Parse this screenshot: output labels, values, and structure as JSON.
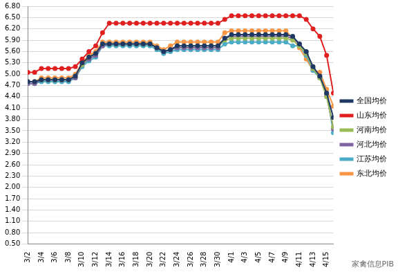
{
  "chart_data": {
    "type": "line",
    "annotation": "家禽信息PIB",
    "categories": [
      "3/2",
      null,
      "3/4",
      null,
      "3/6",
      null,
      "3/8",
      null,
      "3/10",
      null,
      "3/12",
      null,
      "3/14",
      null,
      "3/16",
      null,
      "3/18",
      null,
      "3/20",
      null,
      "3/22",
      null,
      "3/24",
      null,
      "3/26",
      null,
      "3/28",
      null,
      "3/30",
      null,
      "4/1",
      null,
      "4/3",
      null,
      "4/5",
      null,
      "4/7",
      null,
      "4/9",
      null,
      "4/11",
      null,
      "4/13",
      null,
      "4/15",
      null
    ],
    "series": [
      {
        "name": "全国均价",
        "color": "#1f3864",
        "marker": "circle",
        "line_style": "solid",
        "values": [
          4.8,
          4.8,
          4.85,
          4.85,
          4.85,
          4.85,
          4.85,
          4.95,
          5.3,
          5.45,
          5.55,
          5.8,
          5.8,
          5.8,
          5.8,
          5.8,
          5.8,
          5.8,
          5.8,
          5.7,
          5.6,
          5.65,
          5.75,
          5.75,
          5.75,
          5.75,
          5.75,
          5.75,
          5.75,
          5.95,
          6.05,
          6.05,
          6.05,
          6.05,
          6.05,
          6.05,
          6.05,
          6.05,
          6.05,
          6.0,
          5.8,
          5.6,
          5.2,
          4.95,
          4.5,
          3.85
        ]
      },
      {
        "name": "山东均价",
        "color": "#e02020",
        "marker": "circle",
        "line_style": "solid",
        "values": [
          5.05,
          5.05,
          5.15,
          5.15,
          5.15,
          5.15,
          5.15,
          5.2,
          5.4,
          5.6,
          5.75,
          6.1,
          6.35,
          6.35,
          6.35,
          6.35,
          6.35,
          6.35,
          6.35,
          6.35,
          6.35,
          6.35,
          6.35,
          6.35,
          6.35,
          6.35,
          6.35,
          6.35,
          6.35,
          6.45,
          6.55,
          6.55,
          6.55,
          6.55,
          6.55,
          6.55,
          6.55,
          6.55,
          6.55,
          6.55,
          6.55,
          6.45,
          6.2,
          6.0,
          5.5,
          4.5
        ]
      },
      {
        "name": "河南均价",
        "color": "#9bbb59",
        "marker": "circle",
        "line_style": "solid",
        "values": [
          4.8,
          4.8,
          4.85,
          4.85,
          4.85,
          4.85,
          4.85,
          4.95,
          5.25,
          5.45,
          5.55,
          5.8,
          5.8,
          5.8,
          5.8,
          5.8,
          5.8,
          5.8,
          5.8,
          5.7,
          5.6,
          5.65,
          5.75,
          5.75,
          5.75,
          5.75,
          5.75,
          5.75,
          5.75,
          5.9,
          5.95,
          5.95,
          5.95,
          5.95,
          5.95,
          5.95,
          5.95,
          5.95,
          5.95,
          5.9,
          5.75,
          5.55,
          5.15,
          4.9,
          4.4,
          3.6
        ]
      },
      {
        "name": "河北均价",
        "color": "#8064a2",
        "marker": "circle",
        "line_style": "solid",
        "values": [
          4.75,
          4.75,
          4.85,
          4.85,
          4.85,
          4.85,
          4.85,
          4.9,
          5.25,
          5.4,
          5.5,
          5.75,
          5.8,
          5.8,
          5.8,
          5.8,
          5.8,
          5.8,
          5.8,
          5.7,
          5.6,
          5.65,
          5.7,
          5.7,
          5.7,
          5.7,
          5.7,
          5.7,
          5.7,
          5.95,
          6.0,
          6.0,
          6.0,
          6.0,
          6.0,
          6.0,
          6.0,
          6.0,
          6.0,
          5.95,
          5.8,
          5.55,
          5.15,
          4.95,
          4.45,
          3.55
        ]
      },
      {
        "name": "江苏均价",
        "color": "#4bacc6",
        "marker": "circle",
        "line_style": "solid",
        "values": [
          4.75,
          4.75,
          4.8,
          4.8,
          4.8,
          4.8,
          4.8,
          4.9,
          5.2,
          5.35,
          5.45,
          5.75,
          5.75,
          5.75,
          5.75,
          5.75,
          5.75,
          5.75,
          5.75,
          5.65,
          5.55,
          5.6,
          5.65,
          5.65,
          5.65,
          5.65,
          5.65,
          5.65,
          5.65,
          5.8,
          5.85,
          5.85,
          5.85,
          5.85,
          5.85,
          5.85,
          5.85,
          5.85,
          5.85,
          5.75,
          5.75,
          5.5,
          5.1,
          4.9,
          4.5,
          3.45
        ]
      },
      {
        "name": "东北均价",
        "color": "#f79646",
        "marker": "circle",
        "line_style": "solid",
        "values": [
          4.8,
          4.8,
          4.9,
          4.9,
          4.9,
          4.9,
          4.9,
          5.0,
          5.3,
          5.5,
          5.6,
          5.85,
          5.85,
          5.85,
          5.85,
          5.85,
          5.85,
          5.85,
          5.85,
          5.75,
          5.65,
          5.75,
          5.85,
          5.85,
          5.85,
          5.85,
          5.85,
          5.85,
          5.85,
          6.1,
          6.15,
          6.15,
          6.15,
          6.15,
          6.15,
          6.15,
          6.15,
          6.15,
          6.15,
          5.95,
          5.7,
          5.4,
          5.1,
          5.05,
          4.6,
          4.15
        ]
      }
    ],
    "ylim": [
      0.5,
      6.8
    ],
    "yticks": [
      {
        "value": 0.5,
        "label": "0.50"
      },
      {
        "value": 0.8,
        "label": "0.80"
      },
      {
        "value": 1.1,
        "label": "1.10"
      },
      {
        "value": 1.4,
        "label": "1.40"
      },
      {
        "value": 1.7,
        "label": "1.70"
      },
      {
        "value": 2.0,
        "label": "2.00"
      },
      {
        "value": 2.3,
        "label": "2.30"
      },
      {
        "value": 2.6,
        "label": "2.60"
      },
      {
        "value": 2.9,
        "label": "2.90"
      },
      {
        "value": 3.2,
        "label": "3.20"
      },
      {
        "value": 3.5,
        "label": "3.50"
      },
      {
        "value": 3.8,
        "label": "3.80"
      },
      {
        "value": 4.1,
        "label": "4.10"
      },
      {
        "value": 4.4,
        "label": "4.40"
      },
      {
        "value": 4.7,
        "label": "4.70"
      },
      {
        "value": 5.0,
        "label": "5.00"
      },
      {
        "value": 5.3,
        "label": "5.30"
      },
      {
        "value": 5.6,
        "label": "5.60"
      },
      {
        "value": 5.9,
        "label": "5.90"
      },
      {
        "value": 6.2,
        "label": "6.20"
      },
      {
        "value": 6.5,
        "label": "6.50"
      },
      {
        "value": 6.8,
        "label": "6.80"
      }
    ],
    "grid": true,
    "legend": "right"
  }
}
